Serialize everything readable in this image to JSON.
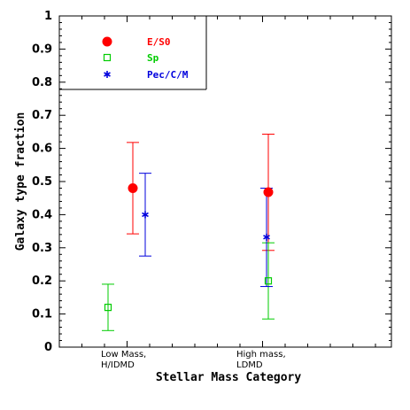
{
  "chart_data": {
    "type": "scatter",
    "title": "",
    "xlabel": "Stellar Mass Category",
    "ylabel": "Galaxy type fraction",
    "ylim": [
      0,
      1
    ],
    "yticks": [
      "0",
      "0.1",
      "0.2",
      "0.3",
      "0.4",
      "0.5",
      "0.6",
      "0.7",
      "0.8",
      "0.9",
      "1"
    ],
    "categories": [
      {
        "line1": "Low Mass,",
        "line2": "H/IDMD"
      },
      {
        "line1": "High mass,",
        "line2": "LDMD"
      }
    ],
    "legend_position": "top-left",
    "series": [
      {
        "name": "E/S0",
        "color": "#ff0000",
        "marker": "filled-circle",
        "values": [
          0.48,
          0.468
        ],
        "err_low": [
          0.342,
          0.292
        ],
        "err_high": [
          0.618,
          0.643
        ]
      },
      {
        "name": "Sp",
        "color": "#00cc00",
        "marker": "open-square",
        "values": [
          0.12,
          0.2
        ],
        "err_low": [
          0.05,
          0.085
        ],
        "err_high": [
          0.19,
          0.315
        ]
      },
      {
        "name": "Pec/C/M",
        "color": "#0000dd",
        "marker": "asterisk",
        "values": [
          0.4,
          0.332
        ],
        "err_low": [
          0.275,
          0.183
        ],
        "err_high": [
          0.525,
          0.48
        ]
      }
    ]
  }
}
